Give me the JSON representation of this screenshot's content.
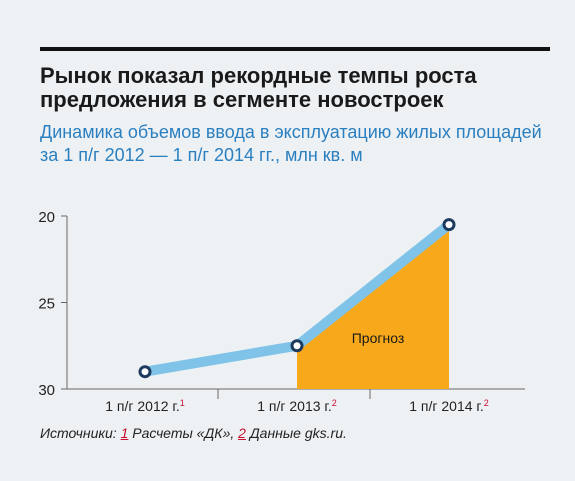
{
  "title": "Рынок показал рекордные темпы роста предложения в сегменте новостроек",
  "subtitle": "Динамика объемов ввода в эксплуатацию жилых площадей за 1 п/г 2012 — 1 п/г 2014 гг., млн кв. м",
  "chart_data": {
    "type": "line",
    "categories": [
      "1 п/г 2012 г.",
      "1 п/г 2013 г.",
      "1 п/г 2014 г."
    ],
    "category_footnotes": [
      "1",
      "2",
      "2"
    ],
    "values": [
      29.0,
      27.5,
      20.5
    ],
    "y_ticks": [
      "20",
      "25",
      "30"
    ],
    "y_axis_reversed": true,
    "ylim": [
      20,
      30
    ],
    "forecast_label": "Прогноз",
    "forecast_from_index": 1,
    "colors": {
      "line": "#7fc4e8",
      "marker_stroke": "#1c3a5e",
      "forecast_fill": "#f7a81b"
    }
  },
  "sources": {
    "prefix": "Источники: ",
    "ref1": "1",
    "text1": " Расчеты «ДК», ",
    "ref2": "2",
    "text2": " Данные gks.ru."
  }
}
